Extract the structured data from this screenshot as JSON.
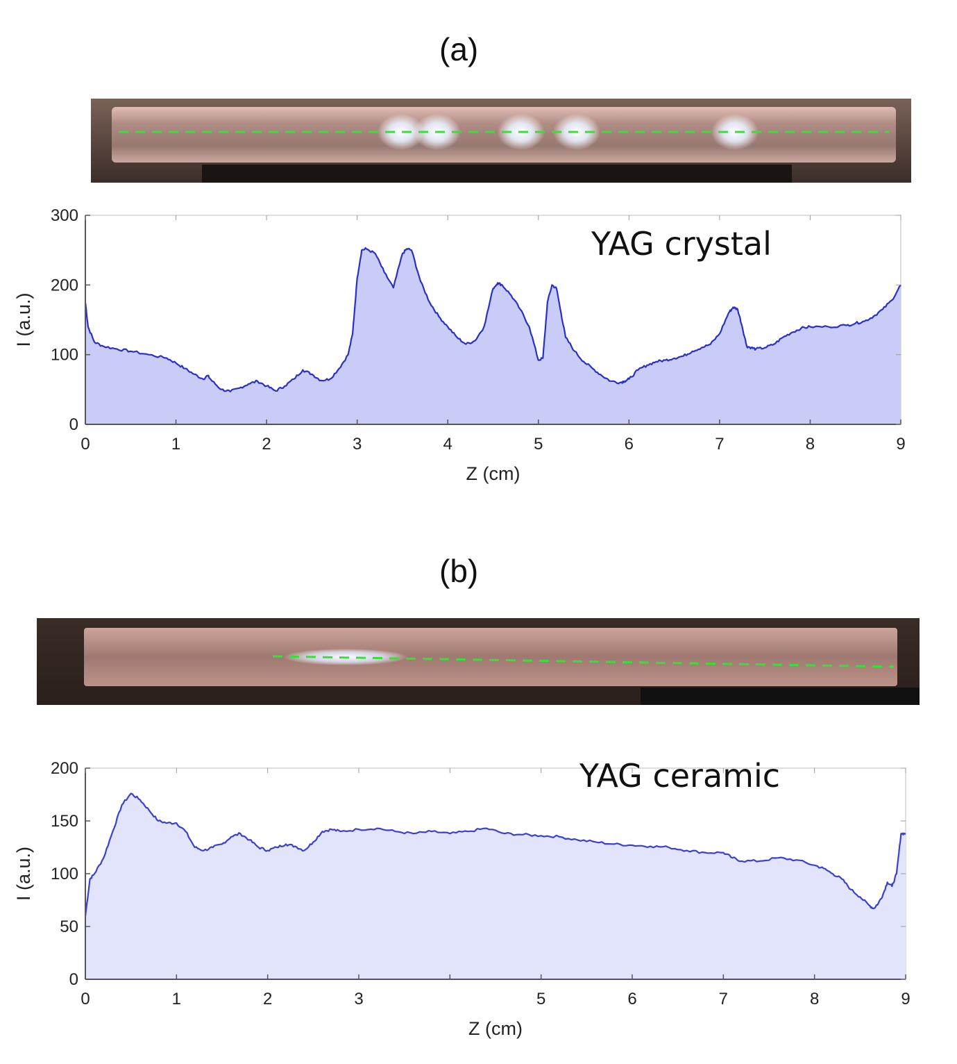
{
  "panels": [
    {
      "label": "(a)",
      "photo": {
        "rod_color": "#cfa79c",
        "beam_color": "#3ddc3d",
        "frame_color": "#5a4a44",
        "hotspots_z_cm": [
          3.3,
          3.72,
          4.7,
          5.35,
          7.2
        ]
      },
      "chart_data": {
        "type": "area",
        "annotation": "YAG crystal",
        "xlabel": "Z (cm)",
        "ylabel": "I (a.u.)",
        "xlim": [
          0,
          9
        ],
        "ylim": [
          0,
          300
        ],
        "xticks": [
          "0",
          "1",
          "2",
          "3",
          "4",
          "5",
          "6",
          "7",
          "8",
          "9"
        ],
        "yticks": [
          "0",
          "100",
          "200",
          "300"
        ],
        "line_color": "#2a2fc8",
        "fill_color": "#c9ccf6",
        "x": [
          0,
          0.03,
          0.1,
          0.2,
          0.35,
          0.5,
          0.7,
          0.9,
          1.0,
          1.1,
          1.2,
          1.3,
          1.35,
          1.4,
          1.5,
          1.6,
          1.7,
          1.8,
          1.9,
          2.0,
          2.1,
          2.2,
          2.3,
          2.4,
          2.5,
          2.6,
          2.7,
          2.8,
          2.9,
          2.95,
          3.0,
          3.05,
          3.1,
          3.2,
          3.3,
          3.4,
          3.5,
          3.55,
          3.6,
          3.7,
          3.8,
          3.9,
          4.0,
          4.1,
          4.2,
          4.3,
          4.4,
          4.5,
          4.55,
          4.6,
          4.7,
          4.8,
          4.9,
          5.0,
          5.05,
          5.1,
          5.15,
          5.2,
          5.25,
          5.3,
          5.4,
          5.5,
          5.6,
          5.7,
          5.8,
          5.9,
          5.95,
          6.0,
          6.1,
          6.2,
          6.3,
          6.4,
          6.5,
          6.6,
          6.7,
          6.8,
          6.9,
          7.0,
          7.1,
          7.15,
          7.2,
          7.25,
          7.3,
          7.35,
          7.4,
          7.5,
          7.6,
          7.7,
          7.8,
          7.9,
          8.0,
          8.2,
          8.4,
          8.5,
          8.6,
          8.7,
          8.8,
          8.9,
          9.0
        ],
        "y": [
          175,
          140,
          118,
          112,
          108,
          105,
          100,
          95,
          88,
          80,
          72,
          65,
          70,
          62,
          50,
          47,
          52,
          58,
          62,
          55,
          48,
          55,
          65,
          78,
          72,
          63,
          65,
          80,
          100,
          130,
          210,
          250,
          252,
          245,
          218,
          196,
          245,
          252,
          250,
          205,
          175,
          155,
          140,
          125,
          115,
          120,
          140,
          195,
          203,
          200,
          185,
          165,
          140,
          92,
          95,
          175,
          200,
          195,
          160,
          125,
          105,
          90,
          80,
          70,
          62,
          60,
          62,
          65,
          78,
          85,
          90,
          92,
          95,
          98,
          105,
          110,
          115,
          130,
          160,
          168,
          165,
          140,
          112,
          110,
          108,
          110,
          115,
          125,
          132,
          138,
          140,
          140,
          142,
          145,
          148,
          155,
          165,
          178,
          200
        ]
      }
    },
    {
      "label": "(b)",
      "photo": {
        "rod_color": "#c9a096",
        "beam_color": "#3ddc3d",
        "frame_color": "#4a3a33",
        "hotspots_z_cm": [
          2.35
        ]
      },
      "chart_data": {
        "type": "area",
        "annotation": "YAG ceramic",
        "xlabel": "Z (cm)",
        "ylabel": "I (a.u.)",
        "xlim": [
          0,
          9
        ],
        "ylim": [
          0,
          200
        ],
        "xticks": [
          "0",
          "1",
          "2",
          "3",
          "",
          "5",
          "6",
          "7",
          "8",
          "9"
        ],
        "yticks": [
          "0",
          "50",
          "100",
          "150",
          "200"
        ],
        "line_color": "#3a3fd0",
        "fill_color": "#e1e4fb",
        "x": [
          0,
          0.05,
          0.1,
          0.2,
          0.3,
          0.4,
          0.5,
          0.6,
          0.7,
          0.8,
          0.9,
          1.0,
          1.1,
          1.2,
          1.3,
          1.4,
          1.5,
          1.6,
          1.7,
          1.8,
          1.9,
          2.0,
          2.1,
          2.2,
          2.3,
          2.4,
          2.5,
          2.6,
          2.7,
          2.8,
          3.0,
          3.2,
          3.4,
          3.6,
          3.8,
          4.0,
          4.2,
          4.4,
          4.6,
          4.8,
          5.0,
          5.2,
          5.4,
          5.6,
          5.8,
          6.0,
          6.2,
          6.4,
          6.6,
          6.8,
          7.0,
          7.1,
          7.2,
          7.4,
          7.6,
          7.8,
          8.0,
          8.1,
          8.2,
          8.3,
          8.4,
          8.5,
          8.6,
          8.65,
          8.7,
          8.75,
          8.8,
          8.85,
          8.9,
          8.95,
          9.0
        ],
        "y": [
          60,
          95,
          100,
          115,
          140,
          165,
          176,
          170,
          160,
          150,
          148,
          148,
          140,
          125,
          122,
          125,
          128,
          135,
          138,
          132,
          125,
          122,
          125,
          128,
          126,
          122,
          130,
          140,
          142,
          140,
          142,
          143,
          140,
          138,
          140,
          138,
          140,
          143,
          138,
          137,
          136,
          135,
          132,
          130,
          128,
          127,
          126,
          125,
          122,
          120,
          120,
          115,
          112,
          112,
          115,
          113,
          108,
          105,
          100,
          95,
          85,
          78,
          70,
          67,
          72,
          80,
          92,
          88,
          100,
          138,
          138
        ]
      }
    }
  ]
}
